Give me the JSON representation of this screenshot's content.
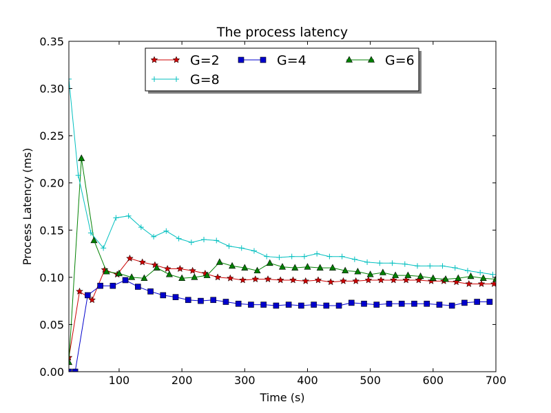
{
  "chart_data": {
    "type": "line",
    "title": "The process latency",
    "xlabel": "Time (s)",
    "ylabel": "Process Latency (ms)",
    "xlim": [
      20,
      700
    ],
    "ylim": [
      0,
      0.35
    ],
    "xticks": [
      100,
      200,
      300,
      400,
      500,
      600,
      700
    ],
    "yticks": [
      0.0,
      0.05,
      0.1,
      0.15,
      0.2,
      0.25,
      0.3,
      0.35
    ],
    "xtick_labels": [
      "100",
      "200",
      "300",
      "400",
      "500",
      "600",
      "700"
    ],
    "ytick_labels": [
      "0.00",
      "0.05",
      "0.10",
      "0.15",
      "0.20",
      "0.25",
      "0.30",
      "0.35"
    ],
    "grid": false,
    "legend_position": "top-center",
    "legend_columns": 3,
    "x": [
      20,
      30,
      40,
      50,
      60,
      70,
      80,
      90,
      100,
      110,
      120,
      130,
      140,
      150,
      160,
      170,
      180,
      190,
      200,
      210,
      220,
      230,
      240,
      250,
      260,
      270,
      280,
      290,
      300,
      310,
      320,
      330,
      340,
      350,
      360,
      370,
      380,
      390,
      400,
      410,
      420,
      430,
      440,
      450,
      460,
      470,
      480,
      490,
      500,
      510,
      520,
      530,
      540,
      550,
      560,
      570,
      580,
      590,
      600,
      610,
      620,
      630,
      640,
      650,
      660,
      670,
      680,
      690,
      700
    ],
    "series": [
      {
        "name": "G=2",
        "color": "#cc0000",
        "marker": "star",
        "x": [
          20,
          37,
          57,
          77,
          97,
          117,
          137,
          157,
          177,
          197,
          217,
          237,
          257,
          277,
          297,
          317,
          337,
          357,
          377,
          397,
          417,
          437,
          457,
          477,
          497,
          517,
          537,
          557,
          577,
          597,
          617,
          637,
          657,
          677,
          697
        ],
        "values": [
          0.015,
          0.085,
          0.076,
          0.108,
          0.103,
          0.12,
          0.116,
          0.113,
          0.109,
          0.109,
          0.107,
          0.104,
          0.1,
          0.099,
          0.097,
          0.098,
          0.098,
          0.097,
          0.097,
          0.096,
          0.097,
          0.095,
          0.096,
          0.096,
          0.097,
          0.097,
          0.097,
          0.097,
          0.097,
          0.096,
          0.096,
          0.095,
          0.093,
          0.093,
          0.093
        ]
      },
      {
        "name": "G=4",
        "color": "#0000cc",
        "marker": "square",
        "x": [
          20,
          30,
          50,
          70,
          90,
          110,
          130,
          150,
          170,
          190,
          210,
          230,
          250,
          270,
          290,
          310,
          330,
          350,
          370,
          390,
          410,
          430,
          450,
          470,
          490,
          510,
          530,
          550,
          570,
          590,
          610,
          630,
          650,
          670,
          690
        ],
        "values": [
          0.0,
          0.0,
          0.081,
          0.091,
          0.091,
          0.097,
          0.09,
          0.085,
          0.081,
          0.079,
          0.076,
          0.075,
          0.076,
          0.074,
          0.072,
          0.071,
          0.071,
          0.07,
          0.071,
          0.07,
          0.071,
          0.07,
          0.07,
          0.073,
          0.072,
          0.071,
          0.072,
          0.072,
          0.072,
          0.072,
          0.071,
          0.07,
          0.073,
          0.074,
          0.074
        ]
      },
      {
        "name": "G=6",
        "color": "#008000",
        "marker": "triangle",
        "x": [
          20,
          40,
          60,
          80,
          100,
          120,
          140,
          160,
          180,
          200,
          220,
          240,
          260,
          280,
          300,
          320,
          340,
          360,
          380,
          400,
          420,
          440,
          460,
          480,
          500,
          520,
          540,
          560,
          580,
          600,
          620,
          640,
          660,
          680,
          700
        ],
        "values": [
          0.01,
          0.226,
          0.139,
          0.106,
          0.104,
          0.1,
          0.099,
          0.11,
          0.103,
          0.099,
          0.1,
          0.102,
          0.116,
          0.112,
          0.11,
          0.107,
          0.115,
          0.111,
          0.11,
          0.111,
          0.11,
          0.11,
          0.107,
          0.106,
          0.103,
          0.105,
          0.102,
          0.102,
          0.101,
          0.099,
          0.098,
          0.099,
          0.101,
          0.099,
          0.098
        ]
      },
      {
        "name": "G=8",
        "color": "#00bfbf",
        "marker": "plus",
        "x": [
          20,
          35,
          55,
          75,
          95,
          115,
          135,
          155,
          175,
          195,
          215,
          235,
          255,
          275,
          295,
          315,
          335,
          355,
          375,
          395,
          415,
          435,
          455,
          475,
          495,
          515,
          535,
          555,
          575,
          595,
          615,
          635,
          655,
          675,
          695
        ],
        "values": [
          0.31,
          0.208,
          0.147,
          0.131,
          0.163,
          0.165,
          0.153,
          0.143,
          0.149,
          0.141,
          0.137,
          0.14,
          0.139,
          0.133,
          0.131,
          0.128,
          0.122,
          0.121,
          0.122,
          0.122,
          0.125,
          0.122,
          0.122,
          0.119,
          0.116,
          0.115,
          0.115,
          0.114,
          0.112,
          0.112,
          0.112,
          0.11,
          0.107,
          0.105,
          0.103
        ]
      }
    ]
  }
}
